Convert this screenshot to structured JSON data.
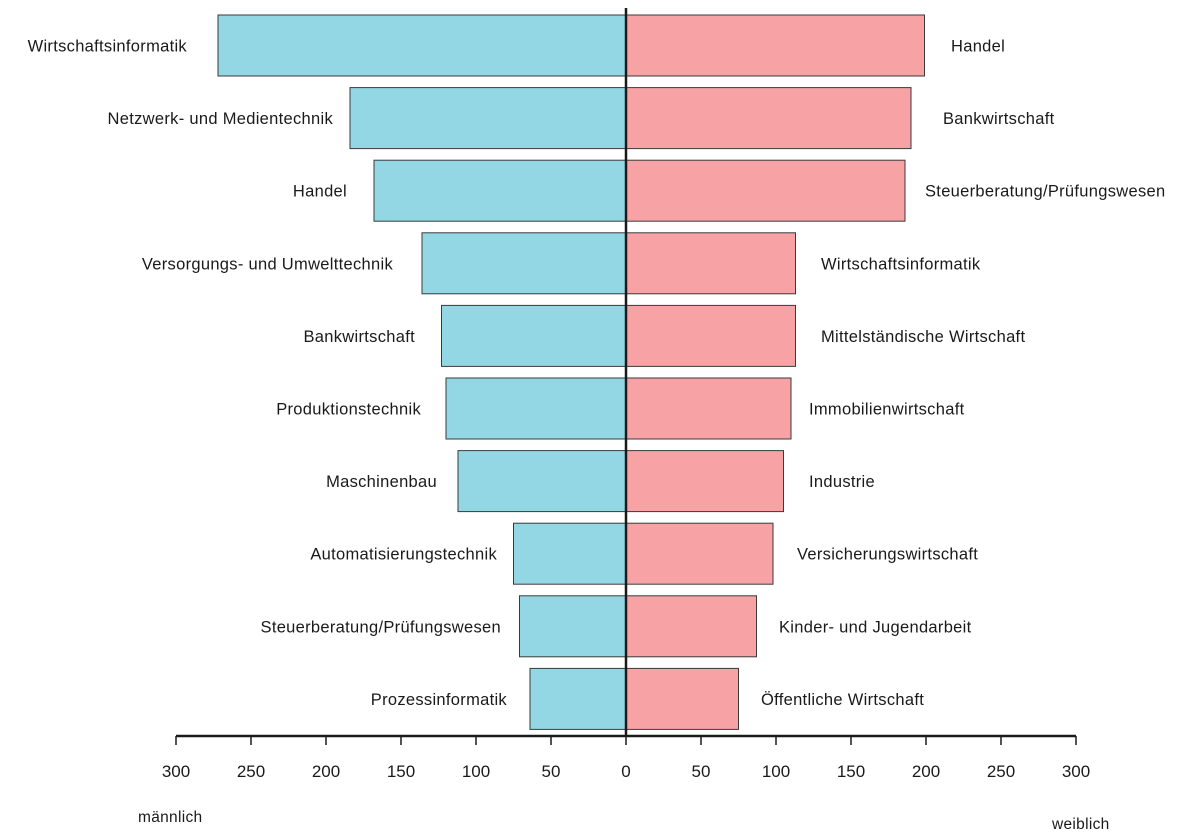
{
  "chart_data": {
    "type": "bar",
    "orientation": "horizontal-butterfly",
    "left_side_label": "männlich",
    "right_side_label": "weiblich",
    "xlim": [
      -300,
      300
    ],
    "ticks": [
      300,
      250,
      200,
      150,
      100,
      50,
      0,
      50,
      100,
      150,
      200,
      250,
      300
    ],
    "colors": {
      "left": "#93d7e4",
      "right": "#f7a3a6",
      "axis": "#1a1a1a"
    },
    "left_series": [
      {
        "label": "Wirtschaftsinformatik",
        "value": 272
      },
      {
        "label": "Netzwerk- und Medientechnik",
        "value": 184
      },
      {
        "label": "Handel",
        "value": 168
      },
      {
        "label": "Versorgungs- und Umwelttechnik",
        "value": 136
      },
      {
        "label": "Bankwirtschaft",
        "value": 123
      },
      {
        "label": "Produktionstechnik",
        "value": 120
      },
      {
        "label": "Maschinenbau",
        "value": 112
      },
      {
        "label": "Automatisierungstechnik",
        "value": 75
      },
      {
        "label": "Steuerberatung/Prüfungswesen",
        "value": 71
      },
      {
        "label": "Prozessinformatik",
        "value": 64
      }
    ],
    "right_series": [
      {
        "label": "Handel",
        "value": 199
      },
      {
        "label": "Bankwirtschaft",
        "value": 190
      },
      {
        "label": "Steuerberatung/Prüfungswesen",
        "value": 186
      },
      {
        "label": "Wirtschaftsinformatik",
        "value": 113
      },
      {
        "label": "Mittelständische Wirtschaft",
        "value": 113
      },
      {
        "label": "Immobilienwirtschaft",
        "value": 110
      },
      {
        "label": "Industrie",
        "value": 105
      },
      {
        "label": "Versicherungswirtschaft",
        "value": 98
      },
      {
        "label": "Kinder- und Jugendarbeit",
        "value": 87
      },
      {
        "label": "Öffentliche Wirtschaft",
        "value": 75
      }
    ]
  }
}
